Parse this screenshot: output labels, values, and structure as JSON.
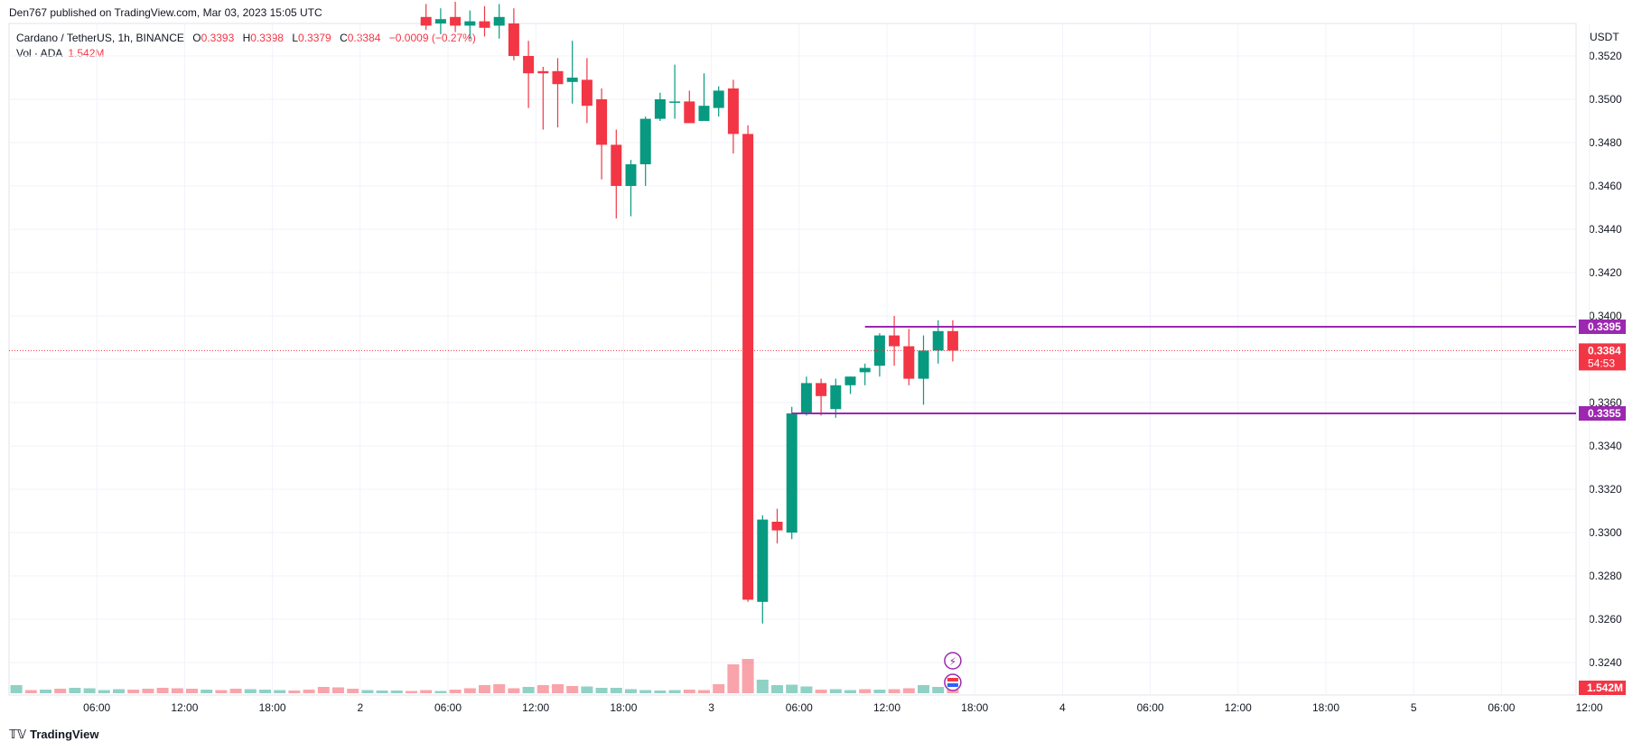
{
  "header": {
    "published": "Den767 published on TradingView.com, Mar 03, 2023 15:05 UTC",
    "symbol": "Cardano / TetherUS, 1h, BINANCE",
    "ohlc": {
      "o_label": "O",
      "o": "0.3393",
      "h_label": "H",
      "h": "0.3398",
      "l_label": "L",
      "l": "0.3379",
      "c_label": "C",
      "c": "0.3384",
      "change": "−0.0009 (−0.27%)"
    },
    "volume_label": "Vol · ADA",
    "volume_value": "1.542M"
  },
  "footer": {
    "logo": "TradingView"
  },
  "colors": {
    "up": "#089981",
    "down": "#f23645",
    "level": "#9c27b0",
    "grid": "#f0f3fa"
  },
  "chart_data": {
    "type": "candlestick",
    "currency": "USDT",
    "y_ticks": [
      "0.3520",
      "0.3500",
      "0.3480",
      "0.3460",
      "0.3440",
      "0.3420",
      "0.3400",
      "0.3380",
      "0.3360",
      "0.3340",
      "0.3320",
      "0.3300",
      "0.3280",
      "0.3260",
      "0.3240"
    ],
    "ylim": [
      0.3225,
      0.3535
    ],
    "x_ticks": [
      {
        "label": "06:00",
        "hour": 6
      },
      {
        "label": "12:00",
        "hour": 12
      },
      {
        "label": "18:00",
        "hour": 18
      },
      {
        "label": "2",
        "hour": 24
      },
      {
        "label": "06:00",
        "hour": 30
      },
      {
        "label": "12:00",
        "hour": 36
      },
      {
        "label": "18:00",
        "hour": 42
      },
      {
        "label": "3",
        "hour": 48
      },
      {
        "label": "06:00",
        "hour": 54
      },
      {
        "label": "12:00",
        "hour": 60
      },
      {
        "label": "18:00",
        "hour": 66
      },
      {
        "label": "4",
        "hour": 72
      },
      {
        "label": "06:00",
        "hour": 78
      },
      {
        "label": "12:00",
        "hour": 84
      },
      {
        "label": "18:00",
        "hour": 90
      },
      {
        "label": "5",
        "hour": 96
      },
      {
        "label": "06:00",
        "hour": 102
      },
      {
        "label": "12:00",
        "hour": 108
      }
    ],
    "candles": [
      {
        "hour": 28.5,
        "o": 0.3538,
        "h": 0.3544,
        "l": 0.3532,
        "c": 0.3534
      },
      {
        "hour": 29.5,
        "o": 0.3535,
        "h": 0.3542,
        "l": 0.353,
        "c": 0.3537
      },
      {
        "hour": 30.5,
        "o": 0.3538,
        "h": 0.3545,
        "l": 0.3531,
        "c": 0.3534
      },
      {
        "hour": 31.5,
        "o": 0.3534,
        "h": 0.3541,
        "l": 0.3528,
        "c": 0.3536
      },
      {
        "hour": 32.5,
        "o": 0.3536,
        "h": 0.3543,
        "l": 0.3529,
        "c": 0.3533
      },
      {
        "hour": 33.5,
        "o": 0.3534,
        "h": 0.3544,
        "l": 0.3528,
        "c": 0.3538
      },
      {
        "hour": 34.5,
        "o": 0.3535,
        "h": 0.3542,
        "l": 0.3518,
        "c": 0.352
      },
      {
        "hour": 35.5,
        "o": 0.352,
        "h": 0.3527,
        "l": 0.3496,
        "c": 0.3512
      },
      {
        "hour": 36.5,
        "o": 0.3513,
        "h": 0.3515,
        "l": 0.3486,
        "c": 0.3512
      },
      {
        "hour": 37.5,
        "o": 0.3513,
        "h": 0.3519,
        "l": 0.3487,
        "c": 0.3507
      },
      {
        "hour": 38.5,
        "o": 0.3508,
        "h": 0.3527,
        "l": 0.3498,
        "c": 0.351
      },
      {
        "hour": 39.5,
        "o": 0.3509,
        "h": 0.3519,
        "l": 0.3489,
        "c": 0.3497
      },
      {
        "hour": 40.5,
        "o": 0.35,
        "h": 0.3505,
        "l": 0.3463,
        "c": 0.3479
      },
      {
        "hour": 41.5,
        "o": 0.3479,
        "h": 0.3486,
        "l": 0.3445,
        "c": 0.346
      },
      {
        "hour": 42.5,
        "o": 0.346,
        "h": 0.3472,
        "l": 0.3446,
        "c": 0.347
      },
      {
        "hour": 43.5,
        "o": 0.347,
        "h": 0.3492,
        "l": 0.346,
        "c": 0.3491
      },
      {
        "hour": 44.5,
        "o": 0.3491,
        "h": 0.3503,
        "l": 0.349,
        "c": 0.35
      },
      {
        "hour": 45.5,
        "o": 0.3499,
        "h": 0.3516,
        "l": 0.3491,
        "c": 0.3499
      },
      {
        "hour": 46.5,
        "o": 0.3499,
        "h": 0.3504,
        "l": 0.3489,
        "c": 0.3489
      },
      {
        "hour": 47.5,
        "o": 0.349,
        "h": 0.3512,
        "l": 0.349,
        "c": 0.3497
      },
      {
        "hour": 48.5,
        "o": 0.3496,
        "h": 0.3506,
        "l": 0.3492,
        "c": 0.3504
      },
      {
        "hour": 49.5,
        "o": 0.3505,
        "h": 0.3509,
        "l": 0.3475,
        "c": 0.3484
      },
      {
        "hour": 50.5,
        "o": 0.3484,
        "h": 0.3488,
        "l": 0.3268,
        "c": 0.3269
      },
      {
        "hour": 51.5,
        "o": 0.3268,
        "h": 0.3308,
        "l": 0.3258,
        "c": 0.3306
      },
      {
        "hour": 52.5,
        "o": 0.3305,
        "h": 0.3311,
        "l": 0.3295,
        "c": 0.3301
      },
      {
        "hour": 53.5,
        "o": 0.33,
        "h": 0.3358,
        "l": 0.3297,
        "c": 0.3355
      },
      {
        "hour": 54.5,
        "o": 0.3355,
        "h": 0.3372,
        "l": 0.3354,
        "c": 0.3369
      },
      {
        "hour": 55.5,
        "o": 0.3369,
        "h": 0.3371,
        "l": 0.3354,
        "c": 0.3363
      },
      {
        "hour": 56.5,
        "o": 0.3357,
        "h": 0.3371,
        "l": 0.3353,
        "c": 0.3368
      },
      {
        "hour": 57.5,
        "o": 0.3368,
        "h": 0.3372,
        "l": 0.3364,
        "c": 0.3372
      },
      {
        "hour": 58.5,
        "o": 0.3374,
        "h": 0.3378,
        "l": 0.3368,
        "c": 0.3376
      },
      {
        "hour": 59.5,
        "o": 0.3377,
        "h": 0.3392,
        "l": 0.3372,
        "c": 0.3391
      },
      {
        "hour": 60.5,
        "o": 0.3391,
        "h": 0.34,
        "l": 0.3377,
        "c": 0.3386
      },
      {
        "hour": 61.5,
        "o": 0.3386,
        "h": 0.3394,
        "l": 0.3368,
        "c": 0.3371
      },
      {
        "hour": 62.5,
        "o": 0.3371,
        "h": 0.3391,
        "l": 0.3359,
        "c": 0.3384
      },
      {
        "hour": 63.5,
        "o": 0.3384,
        "h": 0.3398,
        "l": 0.3378,
        "c": 0.3393
      },
      {
        "hour": 64.5,
        "o": 0.3393,
        "h": 0.3398,
        "l": 0.3379,
        "c": 0.3384
      }
    ],
    "volume": [
      {
        "hour": 0.5,
        "v": 0.9,
        "dir": "up"
      },
      {
        "hour": 1.5,
        "v": 0.35,
        "dir": "down"
      },
      {
        "hour": 2.5,
        "v": 0.4,
        "dir": "up"
      },
      {
        "hour": 3.5,
        "v": 0.5,
        "dir": "down"
      },
      {
        "hour": 4.5,
        "v": 0.6,
        "dir": "up"
      },
      {
        "hour": 5.5,
        "v": 0.55,
        "dir": "up"
      },
      {
        "hour": 6.5,
        "v": 0.35,
        "dir": "up"
      },
      {
        "hour": 7.5,
        "v": 0.45,
        "dir": "up"
      },
      {
        "hour": 8.5,
        "v": 0.4,
        "dir": "down"
      },
      {
        "hour": 9.5,
        "v": 0.5,
        "dir": "down"
      },
      {
        "hour": 10.5,
        "v": 0.6,
        "dir": "down"
      },
      {
        "hour": 11.5,
        "v": 0.55,
        "dir": "down"
      },
      {
        "hour": 12.5,
        "v": 0.5,
        "dir": "down"
      },
      {
        "hour": 13.5,
        "v": 0.4,
        "dir": "up"
      },
      {
        "hour": 14.5,
        "v": 0.35,
        "dir": "down"
      },
      {
        "hour": 15.5,
        "v": 0.5,
        "dir": "down"
      },
      {
        "hour": 16.5,
        "v": 0.45,
        "dir": "up"
      },
      {
        "hour": 17.5,
        "v": 0.4,
        "dir": "up"
      },
      {
        "hour": 18.5,
        "v": 0.35,
        "dir": "up"
      },
      {
        "hour": 19.5,
        "v": 0.3,
        "dir": "down"
      },
      {
        "hour": 20.5,
        "v": 0.4,
        "dir": "down"
      },
      {
        "hour": 21.5,
        "v": 0.7,
        "dir": "down"
      },
      {
        "hour": 22.5,
        "v": 0.65,
        "dir": "down"
      },
      {
        "hour": 23.5,
        "v": 0.5,
        "dir": "down"
      },
      {
        "hour": 24.5,
        "v": 0.35,
        "dir": "up"
      },
      {
        "hour": 25.5,
        "v": 0.3,
        "dir": "up"
      },
      {
        "hour": 26.5,
        "v": 0.3,
        "dir": "up"
      },
      {
        "hour": 27.5,
        "v": 0.25,
        "dir": "down"
      },
      {
        "hour": 28.5,
        "v": 0.35,
        "dir": "down"
      },
      {
        "hour": 29.5,
        "v": 0.25,
        "dir": "up"
      },
      {
        "hour": 30.5,
        "v": 0.4,
        "dir": "down"
      },
      {
        "hour": 31.5,
        "v": 0.55,
        "dir": "down"
      },
      {
        "hour": 32.5,
        "v": 0.9,
        "dir": "down"
      },
      {
        "hour": 33.5,
        "v": 1.0,
        "dir": "down"
      },
      {
        "hour": 34.5,
        "v": 0.55,
        "dir": "down"
      },
      {
        "hour": 35.5,
        "v": 0.7,
        "dir": "up"
      },
      {
        "hour": 36.5,
        "v": 0.9,
        "dir": "down"
      },
      {
        "hour": 37.5,
        "v": 1.0,
        "dir": "down"
      },
      {
        "hour": 38.5,
        "v": 0.8,
        "dir": "down"
      },
      {
        "hour": 39.5,
        "v": 0.75,
        "dir": "up"
      },
      {
        "hour": 40.5,
        "v": 0.6,
        "dir": "up"
      },
      {
        "hour": 41.5,
        "v": 0.6,
        "dir": "up"
      },
      {
        "hour": 42.5,
        "v": 0.45,
        "dir": "up"
      },
      {
        "hour": 43.5,
        "v": 0.35,
        "dir": "up"
      },
      {
        "hour": 44.5,
        "v": 0.3,
        "dir": "up"
      },
      {
        "hour": 45.5,
        "v": 0.35,
        "dir": "up"
      },
      {
        "hour": 46.5,
        "v": 0.4,
        "dir": "down"
      },
      {
        "hour": 47.5,
        "v": 0.35,
        "dir": "down"
      },
      {
        "hour": 48.5,
        "v": 1.0,
        "dir": "down"
      },
      {
        "hour": 49.5,
        "v": 3.2,
        "dir": "down"
      },
      {
        "hour": 50.5,
        "v": 3.8,
        "dir": "down"
      },
      {
        "hour": 51.5,
        "v": 1.5,
        "dir": "up"
      },
      {
        "hour": 52.5,
        "v": 0.9,
        "dir": "up"
      },
      {
        "hour": 53.5,
        "v": 0.95,
        "dir": "up"
      },
      {
        "hour": 54.5,
        "v": 0.75,
        "dir": "up"
      },
      {
        "hour": 55.5,
        "v": 0.4,
        "dir": "down"
      },
      {
        "hour": 56.5,
        "v": 0.45,
        "dir": "up"
      },
      {
        "hour": 57.5,
        "v": 0.35,
        "dir": "up"
      },
      {
        "hour": 58.5,
        "v": 0.45,
        "dir": "down"
      },
      {
        "hour": 59.5,
        "v": 0.4,
        "dir": "up"
      },
      {
        "hour": 60.5,
        "v": 0.45,
        "dir": "down"
      },
      {
        "hour": 61.5,
        "v": 0.55,
        "dir": "down"
      },
      {
        "hour": 62.5,
        "v": 0.9,
        "dir": "up"
      },
      {
        "hour": 63.5,
        "v": 0.7,
        "dir": "up"
      },
      {
        "hour": 64.5,
        "v": 0.4,
        "dir": "down"
      }
    ],
    "horizontal_levels": [
      {
        "value": 0.3395,
        "label": "0.3395",
        "from_hour": 58.5
      },
      {
        "value": 0.3355,
        "label": "0.3355",
        "from_hour": 53.5
      }
    ],
    "last_price": {
      "value": 0.3384,
      "label": "0.3384",
      "countdown": "54:53"
    },
    "volume_badge": "1.542M"
  }
}
